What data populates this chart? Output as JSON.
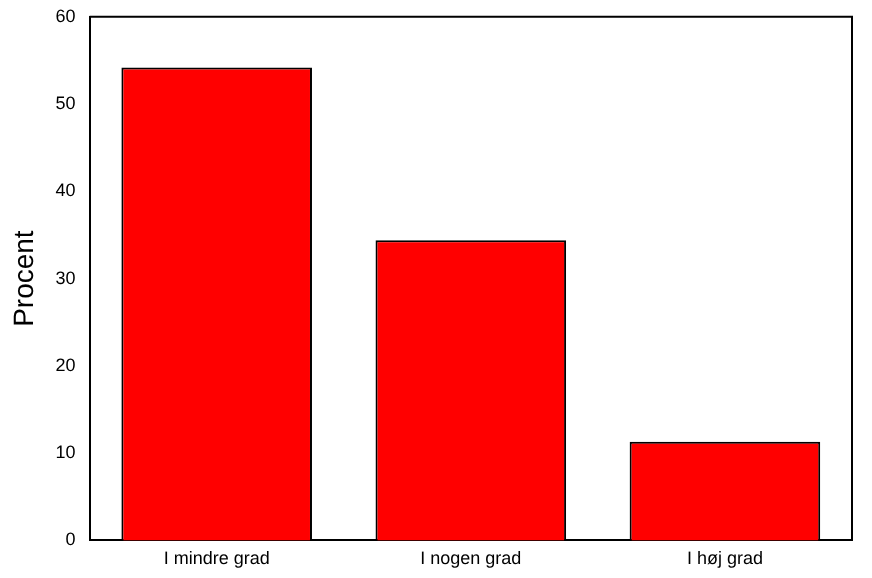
{
  "chart_data": {
    "type": "bar",
    "ylabel": "Procent",
    "categories": [
      "I mindre grad",
      "I nogen grad",
      "I høj grad"
    ],
    "values": [
      54.2,
      34.4,
      11.3
    ],
    "color": "#ff0000",
    "ylim": [
      0,
      60
    ],
    "yticks": [
      0,
      10,
      20,
      30,
      40,
      50,
      60
    ],
    "grid": false,
    "legend": false
  }
}
